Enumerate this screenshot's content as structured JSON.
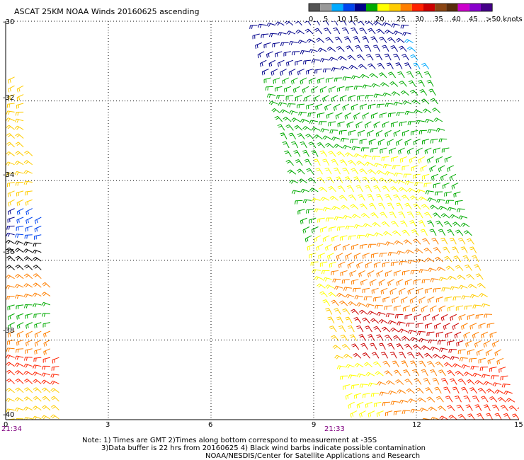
{
  "map": {
    "title": "ASCAT 25KM NOAA Winds 20160625 ascending",
    "lat_ticks": [
      "-30",
      "-32",
      "-34",
      "-36",
      "-38",
      "-40"
    ],
    "lon_ticks": [
      "0",
      "3",
      "6",
      "9",
      "12",
      "15"
    ],
    "time_labels": [
      {
        "text": "21:34",
        "color": "#800080"
      },
      {
        "text": "21:33",
        "color": "#800080"
      }
    ],
    "grid": "dotted",
    "notes": [
      "Note: 1) Times are GMT 2)Times along bottom correspond to measurement at -35S",
      "3)Data buffer is 22 hrs from 20160625 4) Black wind barbs indicate possible contamination",
      "NOAA/NESDIS/Center for Satellite Applications and Research"
    ]
  },
  "legend": {
    "colors": [
      "#555555",
      "#999999",
      "#00aaff",
      "#0044ee",
      "#00008b",
      "#00aa00",
      "#ffff00",
      "#ffcc00",
      "#ff7f00",
      "#ff2200",
      "#cc0000",
      "#8b4513",
      "#5a2d0c",
      "#cc00cc",
      "#8800cc",
      "#440088"
    ],
    "labels": [
      "0",
      "5",
      "10",
      "15",
      "20",
      "25",
      "30",
      "35",
      "40",
      "45",
      ">50 knots"
    ]
  },
  "swaths": [
    {
      "name": "western-swath",
      "lat_range": [
        -40,
        -31.3
      ],
      "lon_range": [
        0,
        1.8
      ]
    },
    {
      "name": "eastern-swath",
      "lat_range": [
        -40,
        -30
      ],
      "lon_range": [
        7.5,
        15
      ]
    }
  ]
}
